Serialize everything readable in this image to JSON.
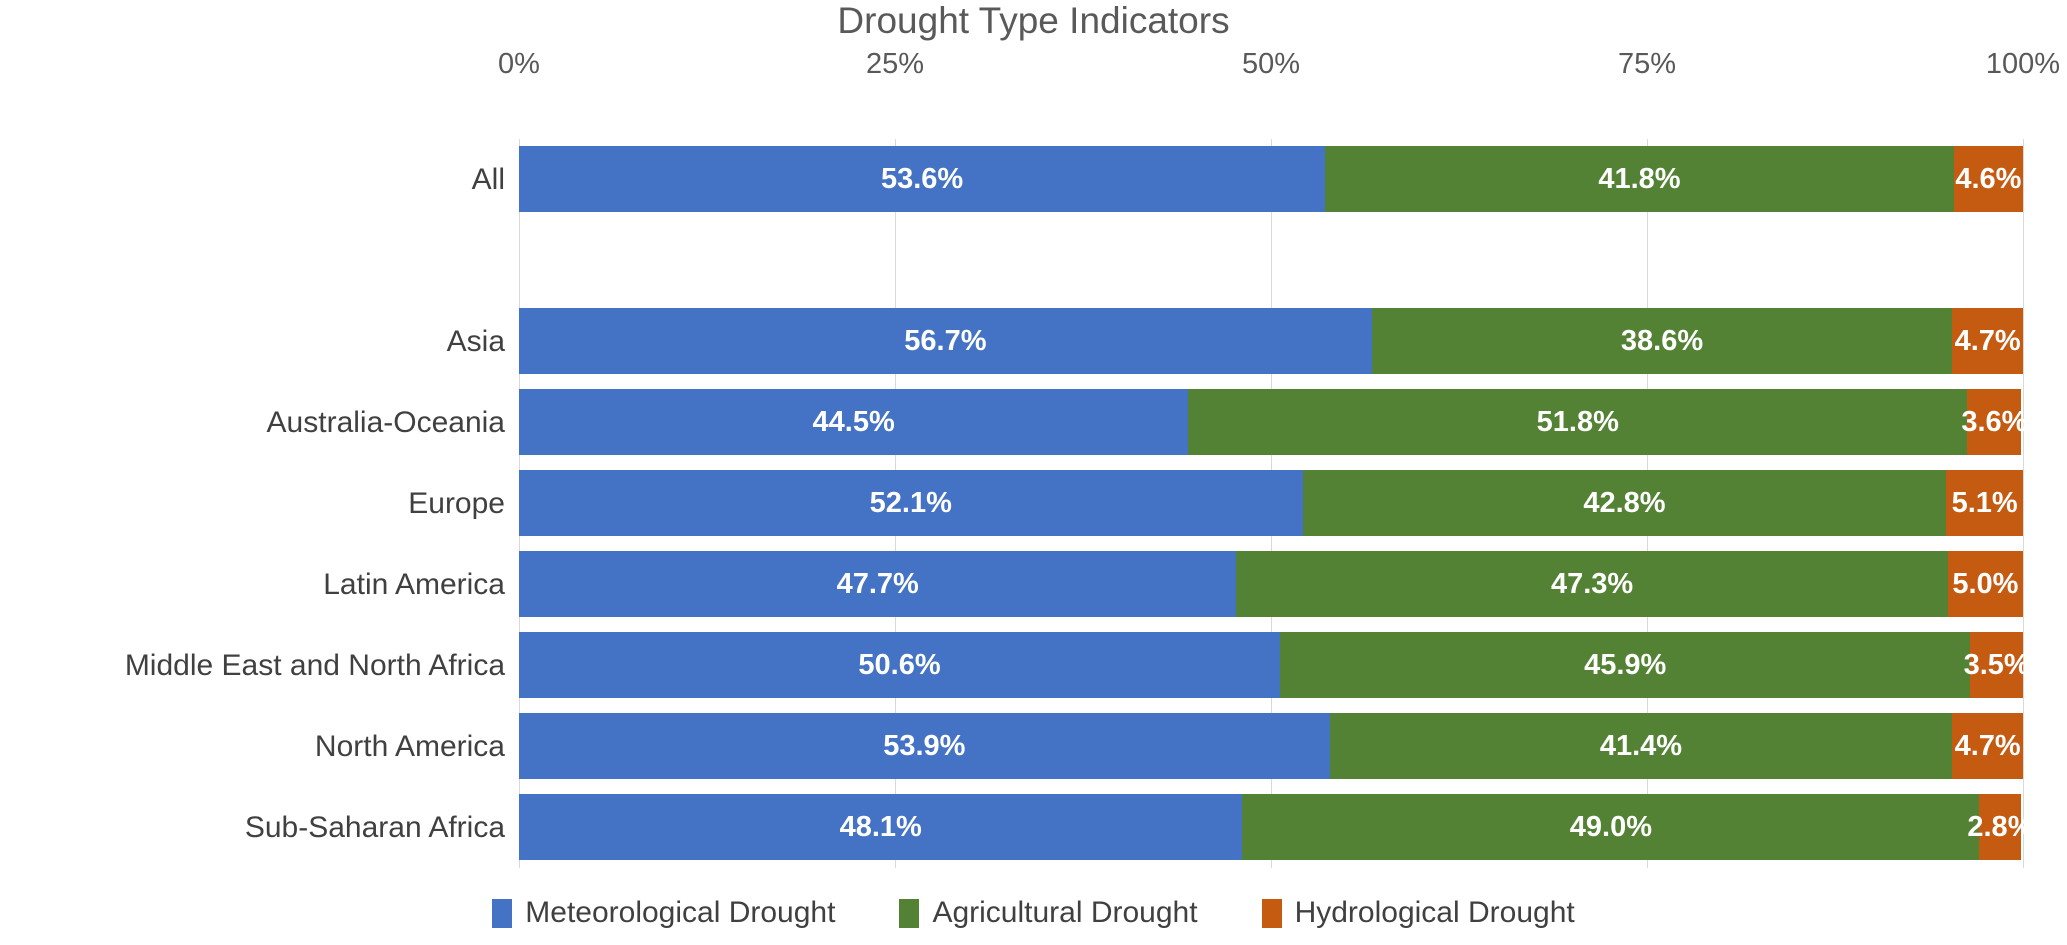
{
  "chart_data": {
    "type": "bar",
    "orientation": "horizontal-stacked",
    "title": "Drought Type Indicators",
    "categories": [
      "All",
      "",
      "Asia",
      "Australia-Oceania",
      "Europe",
      "Latin America",
      "Middle East and North Africa",
      "North America",
      "Sub-Saharan Africa"
    ],
    "series": [
      {
        "name": "Meteorological Drought",
        "color": "#4472C4",
        "values": [
          53.6,
          null,
          56.7,
          44.5,
          52.1,
          47.7,
          50.6,
          53.9,
          48.1
        ]
      },
      {
        "name": "Agricultural Drought",
        "color": "#548235",
        "values": [
          41.8,
          null,
          38.6,
          51.8,
          42.8,
          47.3,
          45.9,
          41.4,
          49.0
        ]
      },
      {
        "name": "Hydrological Drought",
        "color": "#C55A11",
        "values": [
          4.6,
          null,
          4.7,
          3.6,
          5.1,
          5.0,
          3.5,
          4.7,
          2.8
        ]
      }
    ],
    "x_axis": {
      "position": "top",
      "range": [
        0,
        100
      ],
      "tick_labels": [
        "0%",
        "25%",
        "50%",
        "75%",
        "100%"
      ],
      "tick_values": [
        0,
        25,
        50,
        75,
        100
      ]
    },
    "data_label_format": "one-decimal-percent",
    "grid": true,
    "gridline_color": "#D9D9D9",
    "legend_position": "bottom",
    "title_color": "#595959",
    "axis_text_color": "#595959",
    "category_text_color": "#404040",
    "data_label_color": "#FFFFFF"
  }
}
